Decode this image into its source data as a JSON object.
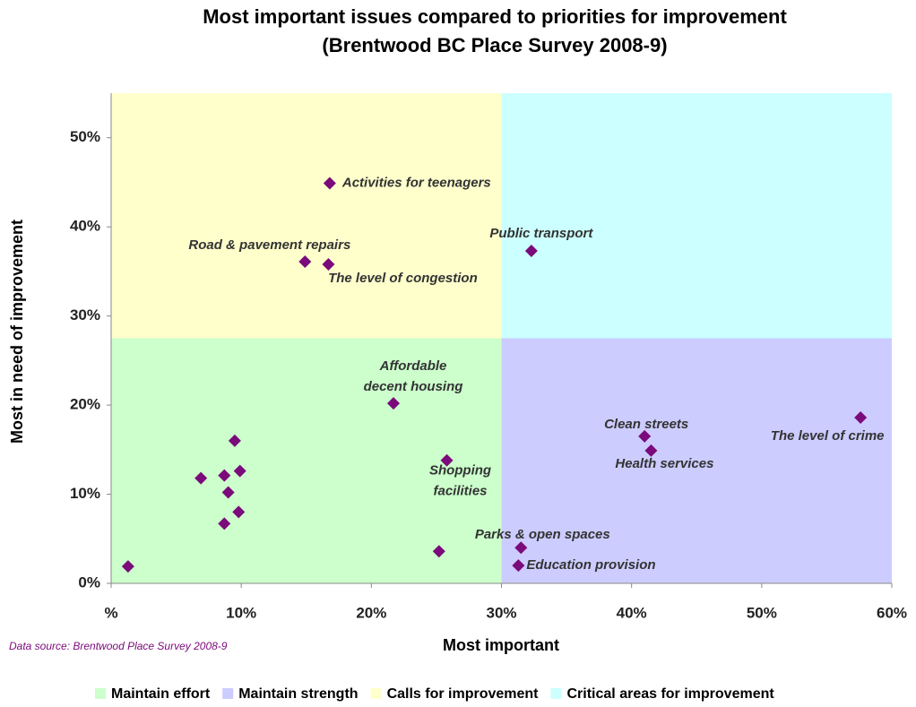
{
  "chart_data": {
    "type": "scatter",
    "title": "Most important issues compared to priorities for improvement",
    "subtitle": "(Brentwood BC Place Survey 2008-9)",
    "x_label": "Most important",
    "y_label": "Most in need of improvement",
    "source": "Data source:  Brentwood Place Survey 2008-9",
    "xlim": [
      0,
      60
    ],
    "ylim": [
      0,
      55
    ],
    "xticks": [
      {
        "value": 0,
        "label": "%"
      },
      {
        "value": 10,
        "label": "10%"
      },
      {
        "value": 20,
        "label": "20%"
      },
      {
        "value": 30,
        "label": "30%"
      },
      {
        "value": 40,
        "label": "40%"
      },
      {
        "value": 50,
        "label": "50%"
      },
      {
        "value": 60,
        "label": "60%"
      }
    ],
    "yticks": [
      {
        "value": 0,
        "label": "0%"
      },
      {
        "value": 10,
        "label": "10%"
      },
      {
        "value": 20,
        "label": "20%"
      },
      {
        "value": 30,
        "label": "30%"
      },
      {
        "value": 40,
        "label": "40%"
      },
      {
        "value": 50,
        "label": "50%"
      }
    ],
    "quadrant_split": {
      "x": 30,
      "y": 27.5
    },
    "quadrants": [
      {
        "name": "Maintain effort",
        "color": "#ccffcc",
        "corner": "bottom-left"
      },
      {
        "name": "Maintain strength",
        "color": "#ccccff",
        "corner": "bottom-right"
      },
      {
        "name": "Calls for improvement",
        "color": "#ffffcc",
        "corner": "top-left"
      },
      {
        "name": "Critical areas for improvement",
        "color": "#ccffff",
        "corner": "top-right"
      }
    ],
    "legend": "bottom",
    "series": [
      {
        "color": "#7b0a7b",
        "x": [
          16.8,
          14.9,
          16.7,
          32.3,
          21.7,
          25.8,
          41.0,
          41.5,
          57.6,
          31.5,
          31.3,
          9.5,
          6.9,
          8.7,
          9.9,
          9.0,
          9.8,
          8.7,
          25.2,
          1.3
        ],
        "values": [
          44.9,
          36.1,
          35.8,
          37.3,
          20.2,
          13.8,
          16.5,
          14.9,
          18.6,
          4.0,
          2.0,
          16.0,
          11.8,
          12.1,
          12.6,
          10.2,
          8.0,
          6.7,
          3.6,
          1.9
        ],
        "labels": [
          [
            "Activities for teenagers"
          ],
          [
            "Road & pavement repairs"
          ],
          [
            "The level of congestion"
          ],
          [
            "Public transport"
          ],
          [
            "Affordable",
            "decent housing"
          ],
          [
            "Shopping",
            "facilities"
          ],
          [
            "Clean streets"
          ],
          [
            "Health services"
          ],
          [
            "The level of crime"
          ],
          [
            "Parks & open spaces"
          ],
          [
            "Education provision"
          ],
          null,
          null,
          null,
          null,
          null,
          null,
          null,
          null,
          null
        ]
      }
    ]
  }
}
